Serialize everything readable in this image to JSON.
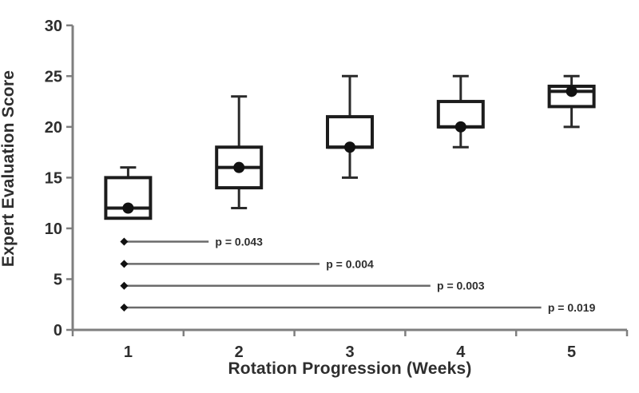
{
  "figure": {
    "background": "#ffffff"
  },
  "chart_data": {
    "type": "boxplot",
    "title": "",
    "xlabel": "Rotation Progression (Weeks)",
    "ylabel": "Expert Evaluation Score",
    "ylim": [
      0,
      30
    ],
    "yticks": [
      0,
      5,
      10,
      15,
      20,
      25,
      30
    ],
    "grid": false,
    "legend": "none",
    "categories": [
      "1",
      "2",
      "3",
      "4",
      "5"
    ],
    "boxes": [
      {
        "category": "1",
        "whisker_low": 11,
        "q1": 11,
        "median": 12,
        "q3": 15,
        "whisker_high": 16,
        "mean": 12
      },
      {
        "category": "2",
        "whisker_low": 12,
        "q1": 14,
        "median": 16,
        "q3": 18,
        "whisker_high": 23,
        "mean": 16
      },
      {
        "category": "3",
        "whisker_low": 15,
        "q1": 18,
        "median": 18,
        "q3": 21,
        "whisker_high": 25,
        "mean": 18
      },
      {
        "category": "4",
        "whisker_low": 18,
        "q1": 20,
        "median": 20,
        "q3": 22.5,
        "whisker_high": 25,
        "mean": 20
      },
      {
        "category": "5",
        "whisker_low": 20,
        "q1": 22,
        "median": 23.5,
        "q3": 24,
        "whisker_high": 25,
        "mean": 23.5
      }
    ],
    "significance_lines": [
      {
        "from_category": "1",
        "to_category": "2",
        "y_value": 8.7,
        "label": "p = 0.043"
      },
      {
        "from_category": "1",
        "to_category": "3",
        "y_value": 6.5,
        "label": "p = 0.004"
      },
      {
        "from_category": "1",
        "to_category": "4",
        "y_value": 4.35,
        "label": "p = 0.003"
      },
      {
        "from_category": "1",
        "to_category": "5",
        "y_value": 2.2,
        "label": "p = 0.019"
      }
    ],
    "colors": {
      "box_stroke": "#1c1c1c",
      "mean_fill": "#111111",
      "whisker": "#2a2a2a",
      "axis": "#7f7f7f",
      "sig_line": "#6b6b6b",
      "text": "#2e2e2e"
    }
  }
}
